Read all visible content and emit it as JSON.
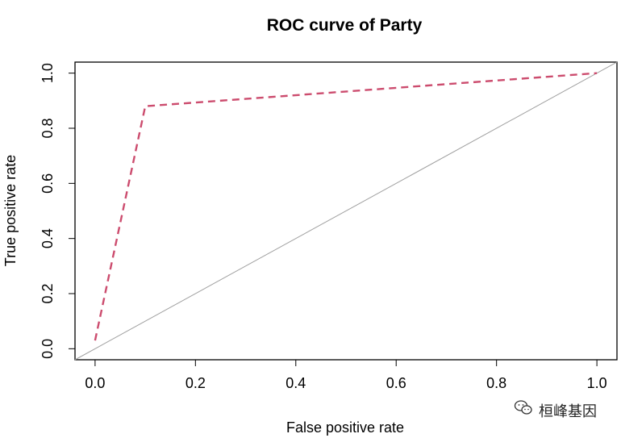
{
  "chart_data": {
    "type": "line",
    "title": "ROC curve of Party",
    "xlabel": "False positive rate",
    "ylabel": "True positive rate",
    "xlim": [
      -0.04,
      1.04
    ],
    "ylim": [
      -0.04,
      1.04
    ],
    "x_ticks": [
      "0.0",
      "0.2",
      "0.4",
      "0.6",
      "0.8",
      "1.0"
    ],
    "y_ticks": [
      "0.0",
      "0.2",
      "0.4",
      "0.6",
      "0.8",
      "1.0"
    ],
    "series": [
      {
        "color": "#cc4c6e",
        "style": "dashed",
        "x": [
          0.0,
          0.1,
          1.0
        ],
        "y": [
          0.03,
          0.88,
          1.0
        ]
      }
    ],
    "reference_line": {
      "color": "#a0a0a0",
      "x": [
        -0.04,
        1.04
      ],
      "y": [
        -0.04,
        1.04
      ]
    },
    "grid": false,
    "legend": "none"
  },
  "watermark": {
    "text": "桓峰基因",
    "icon": "wechat-icon"
  }
}
